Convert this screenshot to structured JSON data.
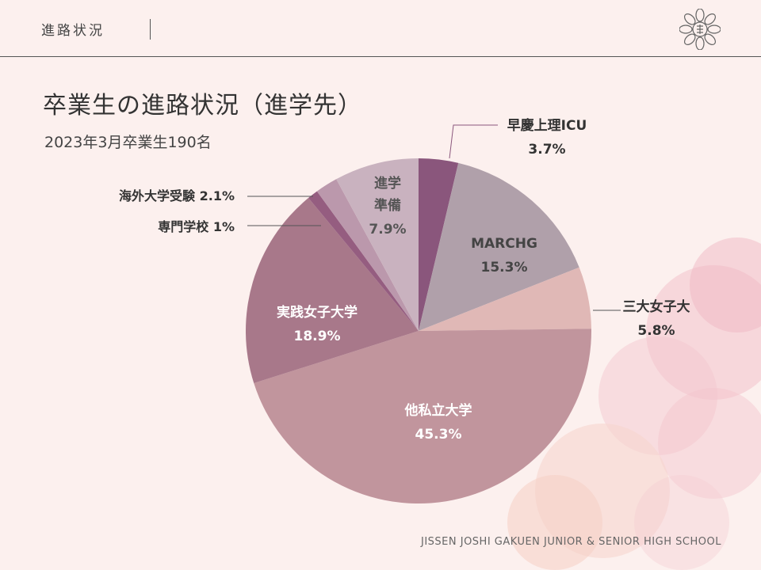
{
  "header": {
    "section_title": "進路状況"
  },
  "chart_data": {
    "type": "pie",
    "title": "卒業生の進路状況（進学先）",
    "subtitle": "2023年3月卒業生190名",
    "slices": [
      {
        "label": "早慶上理ICU",
        "value": 3.7,
        "value_text": "3.7%",
        "color": "#8a567c"
      },
      {
        "label": "MARCHG",
        "value": 15.3,
        "value_text": "15.3%",
        "color": "#b0a0aa"
      },
      {
        "label": "三大女子大",
        "value": 5.8,
        "value_text": "5.8%",
        "color": "#e0b8b6"
      },
      {
        "label": "他私立大学",
        "value": 45.3,
        "value_text": "45.3%",
        "color": "#c1959d"
      },
      {
        "label": "実践女子大学",
        "value": 18.9,
        "value_text": "18.9%",
        "color": "#a8788a"
      },
      {
        "label": "専門学校",
        "value": 1,
        "value_text": "1%",
        "color": "#955d80"
      },
      {
        "label": "海外大学受験",
        "value": 2.1,
        "value_text": "2.1%",
        "color": "#bb98ac"
      },
      {
        "label": "進学準備",
        "value": 7.9,
        "value_text": "7.9%",
        "color": "#c9b2bf"
      }
    ]
  },
  "footer": {
    "school_name": "JISSEN JOSHI GAKUEN JUNIOR & SENIOR HIGH SCHOOL"
  }
}
